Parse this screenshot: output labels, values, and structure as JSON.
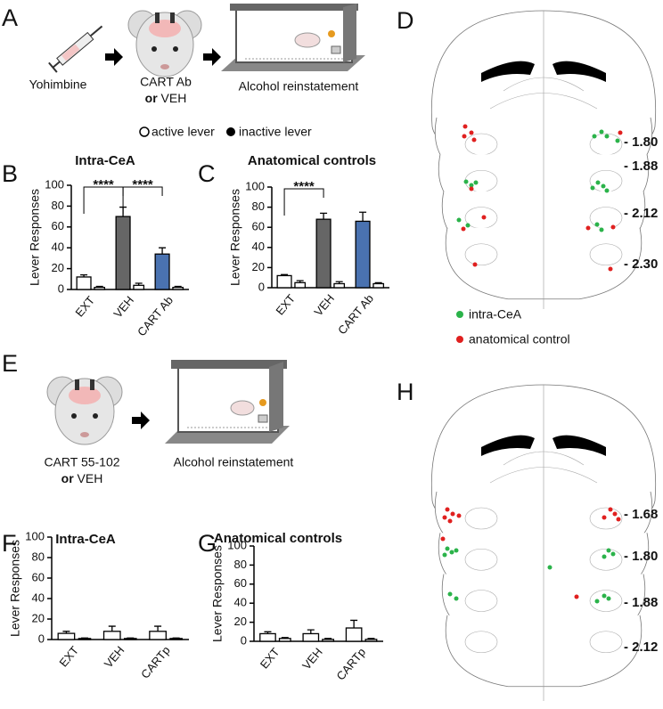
{
  "panel_labels": [
    "A",
    "B",
    "C",
    "D",
    "E",
    "F",
    "G",
    "H"
  ],
  "schematic_a": {
    "drug": "Yohimbine",
    "treatment_line1": "CART Ab",
    "treatment_or": "or",
    "treatment_rest": "VEH",
    "outcome": "Alcohol reinstatement"
  },
  "schematic_e": {
    "treatment_line1": "CART 55-102",
    "treatment_or": "or",
    "treatment_rest": "VEH",
    "outcome": "Alcohol reinstatement"
  },
  "brain_d": {
    "levels": [
      "- 1.80",
      "- 1.88",
      "- 2.12",
      "- 2.30"
    ],
    "legend": [
      "intra-CeA",
      "anatomical control"
    ]
  },
  "brain_h": {
    "levels": [
      "- 1.68",
      "- 1.80",
      "- 1.88",
      "- 2.12"
    ]
  },
  "chart_data": [
    {
      "type": "bar",
      "title": "Intra-CeA",
      "ylabel": "Lever Responses",
      "categories": [
        "EXT",
        "VEH",
        "CART Ab"
      ],
      "series": [
        {
          "name": "active lever",
          "colors": [
            "#ffffff",
            "#666666",
            "#4a72b0"
          ],
          "values": [
            12,
            70,
            34
          ],
          "errors": [
            2,
            9,
            6
          ]
        },
        {
          "name": "inactive lever",
          "color": "#ffffff",
          "values": [
            2,
            4,
            2
          ],
          "errors": [
            1,
            2,
            1
          ]
        }
      ],
      "ylim": [
        0,
        100
      ],
      "yticks": [
        0,
        20,
        40,
        60,
        80,
        100
      ],
      "annotations": [
        "****",
        "****"
      ]
    },
    {
      "type": "bar",
      "title": "Anatomical controls",
      "ylabel": "Lever Responses",
      "categories": [
        "EXT",
        "VEH",
        "CART Ab"
      ],
      "series": [
        {
          "name": "active lever",
          "colors": [
            "#ffffff",
            "#666666",
            "#4a72b0"
          ],
          "values": [
            12,
            68,
            66
          ],
          "errors": [
            1,
            6,
            9
          ]
        },
        {
          "name": "inactive lever",
          "color": "#ffffff",
          "values": [
            5,
            4,
            4
          ],
          "errors": [
            2,
            2,
            1
          ]
        }
      ],
      "ylim": [
        0,
        100
      ],
      "yticks": [
        0,
        20,
        40,
        60,
        80,
        100
      ],
      "annotations": [
        "****"
      ]
    },
    {
      "type": "bar",
      "title": "Intra-CeA",
      "ylabel": "Lever Responses",
      "categories": [
        "EXT",
        "VEH",
        "CARTp"
      ],
      "series": [
        {
          "name": "active lever",
          "colors": [
            "#ffffff",
            "#ffffff",
            "#ffffff"
          ],
          "values": [
            6,
            8,
            8
          ],
          "errors": [
            2,
            5,
            5
          ]
        },
        {
          "name": "inactive lever",
          "color": "#ffffff",
          "values": [
            1,
            1,
            1
          ],
          "errors": [
            0.5,
            0.5,
            0.5
          ]
        }
      ],
      "ylim": [
        0,
        100
      ],
      "yticks": [
        0,
        20,
        40,
        60,
        80,
        100
      ]
    },
    {
      "type": "bar",
      "title": "Anatomical controls",
      "ylabel": "Lever Responses",
      "categories": [
        "EXT",
        "VEH",
        "CARTp"
      ],
      "series": [
        {
          "name": "active lever",
          "colors": [
            "#ffffff",
            "#ffffff",
            "#ffffff"
          ],
          "values": [
            8,
            8,
            14
          ],
          "errors": [
            2,
            4,
            8
          ]
        },
        {
          "name": "inactive lever",
          "color": "#ffffff",
          "values": [
            3,
            2,
            2
          ],
          "errors": [
            1,
            1,
            1
          ]
        }
      ],
      "ylim": [
        0,
        100
      ],
      "yticks": [
        0,
        20,
        40,
        60,
        80,
        100
      ]
    }
  ]
}
